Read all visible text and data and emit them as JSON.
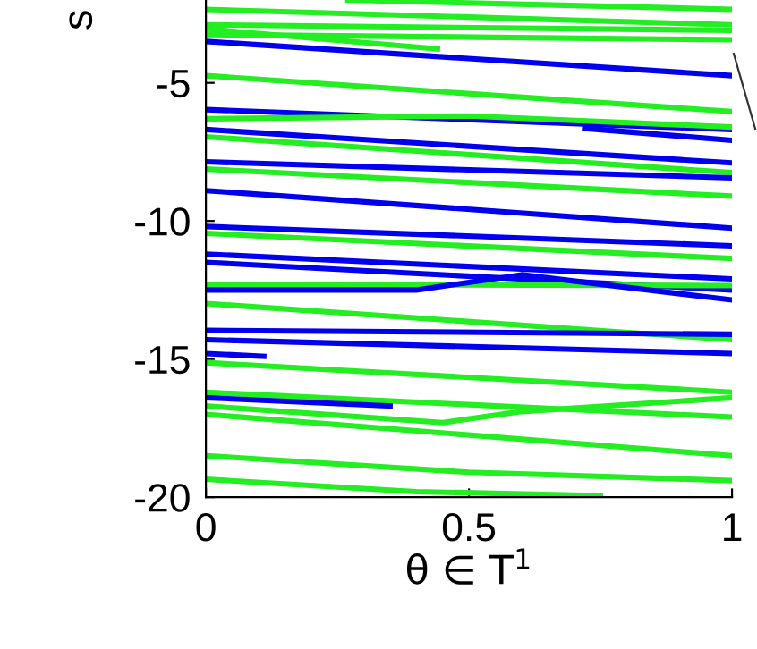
{
  "chart_data": {
    "type": "line",
    "xlabel": "θ ∈ T$^{1}$",
    "ylabel": "s",
    "xlim": [
      0,
      1
    ],
    "ylim": [
      -20,
      -2
    ],
    "xticks": [
      0,
      0.5,
      1
    ],
    "yticks": [
      -20,
      -15,
      -10,
      -5
    ],
    "grid": false,
    "legend": false,
    "marker": "none",
    "line_style": "solid",
    "series": [
      {
        "color": "#22ee22",
        "x": [
          0.27,
          1
        ],
        "values": [
          -2.0,
          -2.34
        ]
      },
      {
        "color": "#22ee22",
        "x": [
          0,
          1
        ],
        "values": [
          -2.34,
          -2.9
        ]
      },
      {
        "color": "#22ee22",
        "x": [
          0,
          1
        ],
        "values": [
          -2.9,
          -3.1
        ]
      },
      {
        "color": "#22ee22",
        "x": [
          0,
          1
        ],
        "values": [
          -3.25,
          -3.44
        ]
      },
      {
        "color": "#22ee22",
        "x": [
          0,
          0.44
        ],
        "values": [
          -3.05,
          -3.77
        ]
      },
      {
        "color": "#0000ee",
        "x": [
          0,
          1
        ],
        "values": [
          -3.5,
          -4.74
        ]
      },
      {
        "color": "#22ee22",
        "x": [
          0,
          1
        ],
        "values": [
          -4.74,
          -6.04
        ]
      },
      {
        "color": "#0000ee",
        "x": [
          0,
          1
        ],
        "values": [
          -5.97,
          -6.69
        ]
      },
      {
        "color": "#22ee22",
        "x": [
          0,
          0.5,
          1
        ],
        "values": [
          -6.3,
          -6.2,
          -6.6
        ]
      },
      {
        "color": "#0000ee",
        "x": [
          0.72,
          1
        ],
        "values": [
          -6.65,
          -7.08
        ]
      },
      {
        "color": "#0000ee",
        "x": [
          0,
          1
        ],
        "values": [
          -6.69,
          -7.9
        ]
      },
      {
        "color": "#22ee22",
        "x": [
          0,
          1
        ],
        "values": [
          -6.95,
          -8.25
        ]
      },
      {
        "color": "#0000ee",
        "x": [
          0,
          1
        ],
        "values": [
          -7.86,
          -8.44
        ]
      },
      {
        "color": "#22ee22",
        "x": [
          0,
          1
        ],
        "values": [
          -8.12,
          -9.1
        ]
      },
      {
        "color": "#0000ee",
        "x": [
          0,
          1
        ],
        "values": [
          -8.9,
          -10.26
        ]
      },
      {
        "color": "#0000ee",
        "x": [
          0,
          1
        ],
        "values": [
          -10.2,
          -10.9
        ]
      },
      {
        "color": "#22ee22",
        "x": [
          0,
          1
        ],
        "values": [
          -10.45,
          -11.36
        ]
      },
      {
        "color": "#0000ee",
        "x": [
          0,
          1
        ],
        "values": [
          -11.2,
          -12.1
        ]
      },
      {
        "color": "#0000ee",
        "x": [
          0,
          1
        ],
        "values": [
          -11.5,
          -12.5
        ]
      },
      {
        "color": "#22ee22",
        "x": [
          0,
          1
        ],
        "values": [
          -12.3,
          -12.34
        ]
      },
      {
        "color": "#0000ee",
        "x": [
          0,
          0.4,
          0.6,
          1
        ],
        "values": [
          -12.5,
          -12.5,
          -11.95,
          -12.86
        ]
      },
      {
        "color": "#22ee22",
        "x": [
          0,
          1
        ],
        "values": [
          -12.99,
          -14.3
        ]
      },
      {
        "color": "#0000ee",
        "x": [
          0,
          1
        ],
        "values": [
          -13.96,
          -14.1
        ]
      },
      {
        "color": "#0000ee",
        "x": [
          0,
          1
        ],
        "values": [
          -14.3,
          -14.8
        ]
      },
      {
        "color": "#0000ee",
        "x": [
          0,
          0.11
        ],
        "values": [
          -14.8,
          -14.9
        ]
      },
      {
        "color": "#22ee22",
        "x": [
          0,
          1
        ],
        "values": [
          -15.13,
          -16.2
        ]
      },
      {
        "color": "#22ee22",
        "x": [
          0,
          1
        ],
        "values": [
          -16.2,
          -17.1
        ]
      },
      {
        "color": "#0000ee",
        "x": [
          0,
          0.35
        ],
        "values": [
          -16.4,
          -16.7
        ]
      },
      {
        "color": "#22ee22",
        "x": [
          0,
          0.45,
          0.6,
          1
        ],
        "values": [
          -16.7,
          -17.3,
          -16.9,
          -16.4
        ]
      },
      {
        "color": "#22ee22",
        "x": [
          0,
          1
        ],
        "values": [
          -17.0,
          -18.5
        ]
      },
      {
        "color": "#22ee22",
        "x": [
          0,
          0.5,
          1
        ],
        "values": [
          -18.5,
          -19.1,
          -19.4
        ]
      },
      {
        "color": "#22ee22",
        "x": [
          0,
          0.4,
          0.75
        ],
        "values": [
          -19.35,
          -19.8,
          -19.95
        ]
      }
    ]
  }
}
